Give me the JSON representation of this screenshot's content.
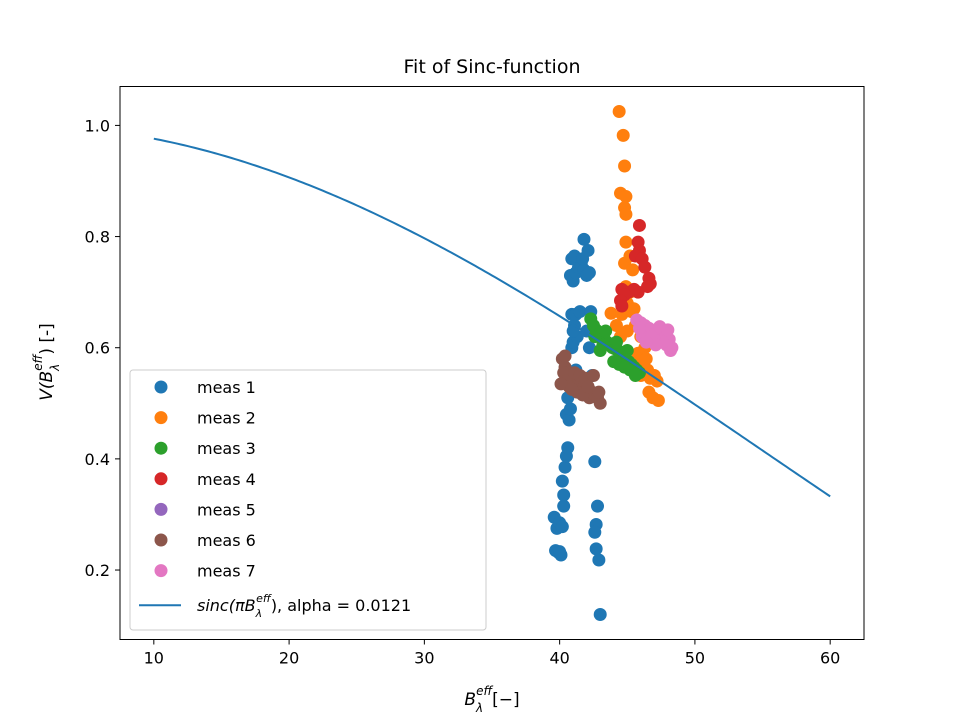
{
  "chart_data": {
    "type": "scatter",
    "title": "Fit of Sinc-function",
    "xlabel": {
      "base": "B",
      "sub": "λ",
      "sup": "eff",
      "tail": "[−]"
    },
    "ylabel": {
      "pre": "V(",
      "base": "B",
      "sub": "λ",
      "sup": "eff",
      "tail": ") [-]"
    },
    "xlim": [
      7.5,
      62.5
    ],
    "ylim": [
      0.075,
      1.07
    ],
    "x_ticks": [
      10,
      20,
      30,
      40,
      50,
      60
    ],
    "y_ticks": [
      0.2,
      0.4,
      0.6,
      0.8,
      1.0
    ],
    "x_tick_labels": [
      "10",
      "20",
      "30",
      "40",
      "50",
      "60"
    ],
    "y_tick_labels": [
      "0.2",
      "0.4",
      "0.6",
      "0.8",
      "1.0"
    ],
    "grid": false,
    "legend_placement": "lower-left",
    "series": [
      {
        "name": "meas 1",
        "color": "#1f77b4",
        "points": [
          [
            39.6,
            0.295
          ],
          [
            39.8,
            0.275
          ],
          [
            40.0,
            0.285
          ],
          [
            40.2,
            0.278
          ],
          [
            39.7,
            0.235
          ],
          [
            39.9,
            0.232
          ],
          [
            40.1,
            0.227
          ],
          [
            40.0,
            0.233
          ],
          [
            40.2,
            0.36
          ],
          [
            40.3,
            0.335
          ],
          [
            40.3,
            0.315
          ],
          [
            40.4,
            0.385
          ],
          [
            40.5,
            0.405
          ],
          [
            40.6,
            0.42
          ],
          [
            40.5,
            0.48
          ],
          [
            40.7,
            0.47
          ],
          [
            40.8,
            0.49
          ],
          [
            40.6,
            0.51
          ],
          [
            41.0,
            0.53
          ],
          [
            41.1,
            0.545
          ],
          [
            41.2,
            0.56
          ],
          [
            40.9,
            0.6
          ],
          [
            41.0,
            0.61
          ],
          [
            41.3,
            0.62
          ],
          [
            41.1,
            0.64
          ],
          [
            40.9,
            0.66
          ],
          [
            41.2,
            0.66
          ],
          [
            41.5,
            0.665
          ],
          [
            41.0,
            0.63
          ],
          [
            40.8,
            0.73
          ],
          [
            41.0,
            0.72
          ],
          [
            41.2,
            0.735
          ],
          [
            41.4,
            0.745
          ],
          [
            41.6,
            0.75
          ],
          [
            41.8,
            0.74
          ],
          [
            42.0,
            0.73
          ],
          [
            42.2,
            0.735
          ],
          [
            40.9,
            0.76
          ],
          [
            41.1,
            0.765
          ],
          [
            41.7,
            0.76
          ],
          [
            42.1,
            0.775
          ],
          [
            41.8,
            0.795
          ],
          [
            42.3,
            0.665
          ],
          [
            42.0,
            0.63
          ],
          [
            42.6,
            0.395
          ],
          [
            42.8,
            0.315
          ],
          [
            42.7,
            0.282
          ],
          [
            42.6,
            0.268
          ],
          [
            42.7,
            0.238
          ],
          [
            42.9,
            0.218
          ],
          [
            43.0,
            0.12
          ],
          [
            42.4,
            0.55
          ],
          [
            42.2,
            0.6
          ]
        ]
      },
      {
        "name": "meas 2",
        "color": "#ff7f0e",
        "points": [
          [
            44.4,
            1.025
          ],
          [
            44.7,
            0.982
          ],
          [
            44.8,
            0.927
          ],
          [
            44.5,
            0.878
          ],
          [
            44.9,
            0.872
          ],
          [
            44.8,
            0.852
          ],
          [
            44.9,
            0.84
          ],
          [
            44.9,
            0.79
          ],
          [
            44.8,
            0.752
          ],
          [
            45.2,
            0.765
          ],
          [
            45.4,
            0.74
          ],
          [
            44.9,
            0.71
          ],
          [
            45.2,
            0.7
          ],
          [
            45.0,
            0.68
          ],
          [
            44.6,
            0.66
          ],
          [
            45.3,
            0.665
          ],
          [
            45.5,
            0.67
          ],
          [
            43.8,
            0.662
          ],
          [
            44.2,
            0.64
          ],
          [
            44.5,
            0.62
          ],
          [
            45.0,
            0.63
          ],
          [
            45.6,
            0.64
          ],
          [
            46.0,
            0.62
          ],
          [
            46.3,
            0.6
          ],
          [
            45.8,
            0.59
          ],
          [
            46.2,
            0.57
          ],
          [
            46.5,
            0.56
          ],
          [
            45.5,
            0.575
          ],
          [
            46.0,
            0.55
          ],
          [
            46.7,
            0.545
          ],
          [
            47.0,
            0.55
          ],
          [
            47.2,
            0.54
          ],
          [
            46.6,
            0.52
          ],
          [
            46.9,
            0.51
          ],
          [
            47.3,
            0.505
          ],
          [
            46.4,
            0.58
          ]
        ]
      },
      {
        "name": "meas 3",
        "color": "#2ca02c",
        "points": [
          [
            42.3,
            0.652
          ],
          [
            42.5,
            0.64
          ],
          [
            42.7,
            0.632
          ],
          [
            42.9,
            0.625
          ],
          [
            43.1,
            0.62
          ],
          [
            43.3,
            0.615
          ],
          [
            43.5,
            0.61
          ],
          [
            43.7,
            0.605
          ],
          [
            43.9,
            0.6
          ],
          [
            44.1,
            0.598
          ],
          [
            44.3,
            0.595
          ],
          [
            44.5,
            0.59
          ],
          [
            44.7,
            0.585
          ],
          [
            44.9,
            0.58
          ],
          [
            45.1,
            0.575
          ],
          [
            45.3,
            0.57
          ],
          [
            45.5,
            0.565
          ],
          [
            45.7,
            0.56
          ],
          [
            45.9,
            0.555
          ],
          [
            43.0,
            0.595
          ],
          [
            43.2,
            0.605
          ],
          [
            44.0,
            0.575
          ],
          [
            44.4,
            0.57
          ],
          [
            44.8,
            0.565
          ],
          [
            45.2,
            0.56
          ],
          [
            45.6,
            0.55
          ],
          [
            42.6,
            0.62
          ],
          [
            43.4,
            0.63
          ],
          [
            44.2,
            0.61
          ],
          [
            45.0,
            0.595
          ]
        ]
      },
      {
        "name": "meas 4",
        "color": "#d62728",
        "points": [
          [
            45.9,
            0.82
          ],
          [
            45.8,
            0.79
          ],
          [
            45.9,
            0.775
          ],
          [
            45.6,
            0.765
          ],
          [
            46.1,
            0.76
          ],
          [
            46.3,
            0.745
          ],
          [
            46.6,
            0.725
          ],
          [
            46.7,
            0.715
          ],
          [
            46.5,
            0.71
          ],
          [
            45.8,
            0.7
          ],
          [
            45.5,
            0.705
          ],
          [
            45.1,
            0.7
          ],
          [
            44.6,
            0.705
          ],
          [
            44.8,
            0.695
          ],
          [
            44.5,
            0.685
          ],
          [
            44.6,
            0.675
          ]
        ]
      },
      {
        "name": "meas 5",
        "color": "#9467bd",
        "points": []
      },
      {
        "name": "meas 6",
        "color": "#8c564b",
        "points": [
          [
            40.2,
            0.58
          ],
          [
            40.4,
            0.565
          ],
          [
            40.6,
            0.555
          ],
          [
            40.8,
            0.545
          ],
          [
            41.0,
            0.54
          ],
          [
            41.2,
            0.535
          ],
          [
            41.4,
            0.53
          ],
          [
            41.6,
            0.525
          ],
          [
            41.8,
            0.52
          ],
          [
            42.0,
            0.515
          ],
          [
            42.2,
            0.51
          ],
          [
            42.4,
            0.52
          ],
          [
            42.6,
            0.515
          ],
          [
            42.8,
            0.51
          ],
          [
            43.0,
            0.5
          ],
          [
            40.3,
            0.555
          ],
          [
            40.5,
            0.54
          ],
          [
            40.7,
            0.53
          ],
          [
            41.1,
            0.555
          ],
          [
            41.5,
            0.55
          ],
          [
            41.9,
            0.545
          ],
          [
            42.5,
            0.55
          ],
          [
            40.4,
            0.585
          ],
          [
            41.3,
            0.52
          ],
          [
            41.7,
            0.515
          ],
          [
            42.1,
            0.53
          ],
          [
            42.9,
            0.52
          ],
          [
            40.1,
            0.535
          ],
          [
            40.9,
            0.525
          ]
        ]
      },
      {
        "name": "meas 7",
        "color": "#e377c2",
        "points": [
          [
            45.7,
            0.65
          ],
          [
            46.0,
            0.645
          ],
          [
            46.3,
            0.64
          ],
          [
            46.6,
            0.635
          ],
          [
            46.9,
            0.63
          ],
          [
            47.2,
            0.628
          ],
          [
            47.5,
            0.625
          ],
          [
            47.8,
            0.62
          ],
          [
            48.1,
            0.615
          ],
          [
            48.3,
            0.6
          ],
          [
            48.2,
            0.595
          ],
          [
            47.9,
            0.605
          ],
          [
            47.6,
            0.61
          ],
          [
            46.5,
            0.625
          ],
          [
            47.0,
            0.615
          ],
          [
            47.4,
            0.638
          ],
          [
            46.1,
            0.62
          ],
          [
            46.8,
            0.62
          ],
          [
            48.0,
            0.632
          ],
          [
            45.9,
            0.635
          ],
          [
            47.1,
            0.605
          ],
          [
            46.4,
            0.61
          ]
        ]
      }
    ],
    "fit": {
      "name_math": "sinc(πB",
      "name_sub": "λ",
      "name_sup": "eff",
      "name_close": "), alpha = 0.0121",
      "color": "#1f77b4",
      "alpha": 0.0121,
      "x_range": [
        10,
        60
      ]
    }
  }
}
